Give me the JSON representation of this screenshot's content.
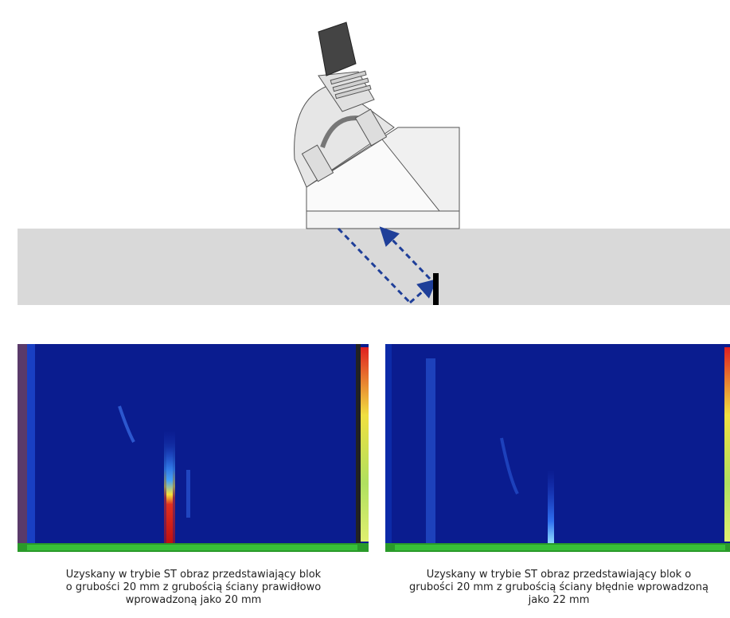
{
  "captions": [
    {
      "lines": [
        "Uzyskany w trybie ST obraz przedstawiający blok",
        "o grubości 20 mm z grubością ściany prawidłowo",
        "wprowadzoną jako 20 mm"
      ]
    },
    {
      "lines": [
        "Uzyskany w trybie ST obraz przedstawiający blok o",
        "grubości 20 mm z grubością ściany błędnie wprowadzoną",
        "jako 22 mm"
      ]
    }
  ]
}
